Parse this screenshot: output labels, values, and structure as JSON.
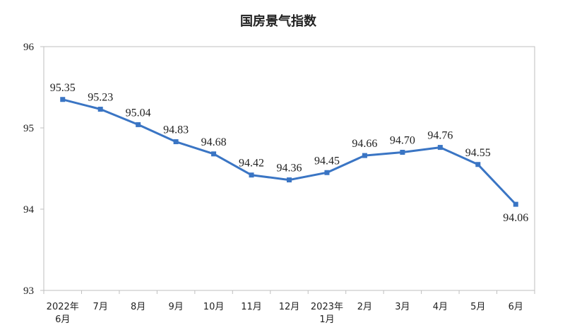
{
  "chart_data": {
    "type": "line",
    "title": "国房景气指数",
    "xlabel": "",
    "ylabel": "",
    "ylim": [
      93,
      96
    ],
    "yticks": [
      "96",
      "95",
      "94",
      "93"
    ],
    "grid": false,
    "legend": "none",
    "line_color": "#3a75c4",
    "categories": [
      [
        "2022年",
        "6月"
      ],
      [
        "7月"
      ],
      [
        "8月"
      ],
      [
        "9月"
      ],
      [
        "10月"
      ],
      [
        "11月"
      ],
      [
        "12月"
      ],
      [
        "2023年",
        "1月"
      ],
      [
        "2月"
      ],
      [
        "3月"
      ],
      [
        "4月"
      ],
      [
        "5月"
      ],
      [
        "6月"
      ]
    ],
    "values": [
      95.35,
      95.23,
      95.04,
      94.83,
      94.68,
      94.42,
      94.36,
      94.45,
      94.66,
      94.7,
      94.76,
      94.55,
      94.06
    ],
    "data_labels": [
      "95.35",
      "95.23",
      "95.04",
      "94.83",
      "94.68",
      "94.42",
      "94.36",
      "94.45",
      "94.66",
      "94.70",
      "94.76",
      "94.55",
      "94.06"
    ]
  }
}
